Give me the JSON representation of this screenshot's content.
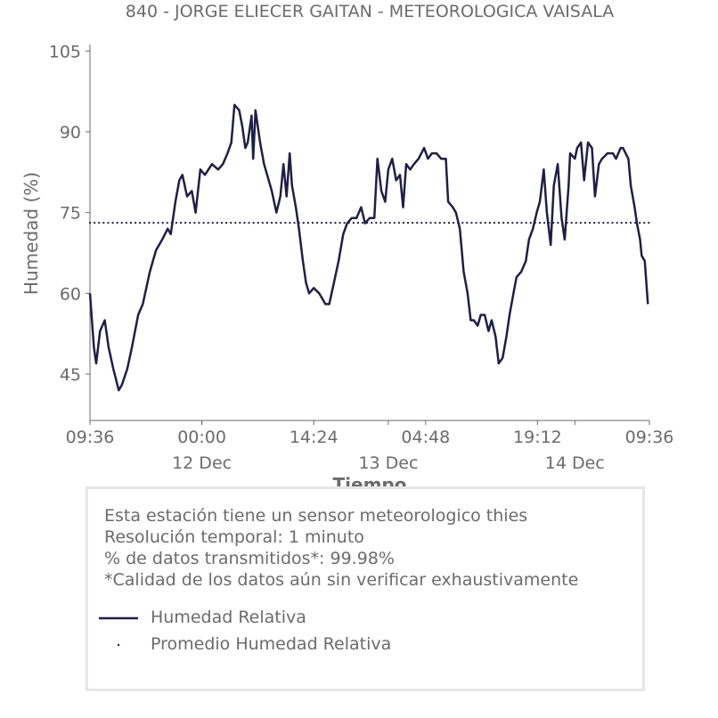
{
  "chart_data": {
    "type": "line",
    "title": "840 - JORGE ELIECER GAITAN - METEOROLOGICA VAISALA",
    "xlabel": "Tiempo",
    "ylabel": "Humedad (%)",
    "x_units": "hours since 11 Dec 09:36",
    "xlim": [
      0,
      72
    ],
    "ylim": [
      36.4,
      106.2
    ],
    "yticks": [
      45,
      60,
      75,
      90,
      105
    ],
    "xticks": [
      {
        "x": 0,
        "label": "09:36"
      },
      {
        "x": 14.4,
        "label": "00:00"
      },
      {
        "x": 28.8,
        "label": "14:24"
      },
      {
        "x": 43.2,
        "label": "04:48"
      },
      {
        "x": 57.6,
        "label": "19:12"
      },
      {
        "x": 72,
        "label": "09:36"
      }
    ],
    "date_ticks": [
      {
        "x": 14.4,
        "label": "12 Dec"
      },
      {
        "x": 38.4,
        "label": "13 Dec"
      },
      {
        "x": 62.4,
        "label": "14 Dec"
      }
    ],
    "grid": false,
    "colors": {
      "series": "#1f1f45",
      "axis": "#6b6b6b"
    },
    "series": [
      {
        "name": "Humedad Relativa",
        "style": "solid",
        "x": [
          0,
          0.5,
          0.8,
          1.3,
          1.9,
          2.4,
          3.0,
          3.7,
          4.1,
          4.8,
          5.4,
          6.2,
          6.8,
          7.7,
          8.5,
          9.3,
          10.0,
          10.4,
          11.0,
          11.5,
          11.9,
          12.5,
          13.1,
          13.6,
          14.2,
          14.8,
          15.7,
          16.5,
          17.1,
          17.7,
          18.2,
          18.6,
          19.2,
          19.6,
          20.0,
          20.3,
          20.8,
          21.0,
          21.3,
          21.9,
          22.4,
          22.8,
          23.4,
          24.0,
          24.5,
          24.9,
          25.3,
          25.7,
          26.0,
          26.5,
          26.9,
          27.4,
          27.8,
          28.2,
          28.8,
          29.5,
          30.3,
          30.8,
          31.4,
          32.0,
          32.6,
          33.1,
          33.7,
          34.3,
          34.9,
          35.4,
          36.0,
          36.6,
          37.0,
          37.5,
          38.0,
          38.4,
          38.9,
          39.4,
          39.9,
          40.3,
          40.7,
          41.2,
          41.7,
          42.3,
          43.0,
          43.5,
          44.0,
          44.6,
          45.2,
          45.8,
          46.1,
          46.7,
          47.1,
          47.6,
          48.1,
          48.6,
          49.0,
          49.4,
          49.9,
          50.3,
          50.8,
          51.3,
          51.7,
          52.2,
          52.6,
          53.1,
          53.6,
          54.0,
          54.5,
          54.9,
          55.5,
          56.1,
          56.5,
          57.0,
          57.5,
          57.9,
          58.4,
          58.8,
          59.3,
          59.7,
          60.2,
          60.7,
          61.1,
          61.6,
          61.8,
          62.4,
          62.7,
          63.2,
          63.6,
          64.1,
          64.6,
          65.0,
          65.5,
          65.9,
          66.6,
          67.3,
          67.7,
          68.3,
          68.6,
          69.3,
          69.6,
          70.1,
          70.4,
          70.8,
          71.0,
          71.4,
          71.8
        ],
        "y": [
          60,
          50,
          47,
          53,
          55,
          50,
          46,
          42,
          43,
          46,
          50,
          56,
          58,
          64,
          68,
          70,
          72,
          71,
          77,
          81,
          82,
          78,
          79,
          75,
          83,
          82,
          84,
          83,
          84,
          86,
          88,
          95,
          94,
          91,
          87,
          88,
          93,
          85,
          94,
          88,
          84,
          82,
          79,
          75,
          78,
          84,
          78,
          86,
          80,
          76,
          72,
          66,
          62,
          60,
          61,
          60,
          58,
          58,
          62,
          66,
          71,
          73,
          74,
          74,
          76,
          73,
          74,
          74,
          85,
          79,
          77,
          83,
          85,
          81,
          82,
          76,
          84,
          83,
          84,
          85,
          87,
          85,
          86,
          86,
          85,
          85,
          77,
          76,
          75,
          72,
          64,
          60,
          55,
          55,
          54,
          56,
          56,
          53,
          55,
          52,
          47,
          48,
          52,
          56,
          60,
          63,
          64,
          66,
          70,
          72,
          75,
          77,
          83,
          75,
          69,
          80,
          84,
          74,
          70,
          80,
          86,
          85,
          87,
          88,
          81,
          88,
          87,
          78,
          84,
          85,
          86,
          86,
          85,
          87,
          87,
          85,
          80,
          76,
          73,
          70,
          67,
          66,
          58
        ]
      },
      {
        "name": "Promedio Humedad Relativa",
        "style": "dotted",
        "value": 73.1
      }
    ]
  },
  "legend": {
    "info_lines": [
      "Esta estación tiene un sensor meteorologico thies",
      "Resolución temporal: 1 minuto",
      "% de datos transmitidos*: 99.98%",
      "*Calidad de los datos aún sin verificar exhaustivamente"
    ],
    "items": [
      "Humedad Relativa",
      "Promedio Humedad Relativa"
    ]
  }
}
